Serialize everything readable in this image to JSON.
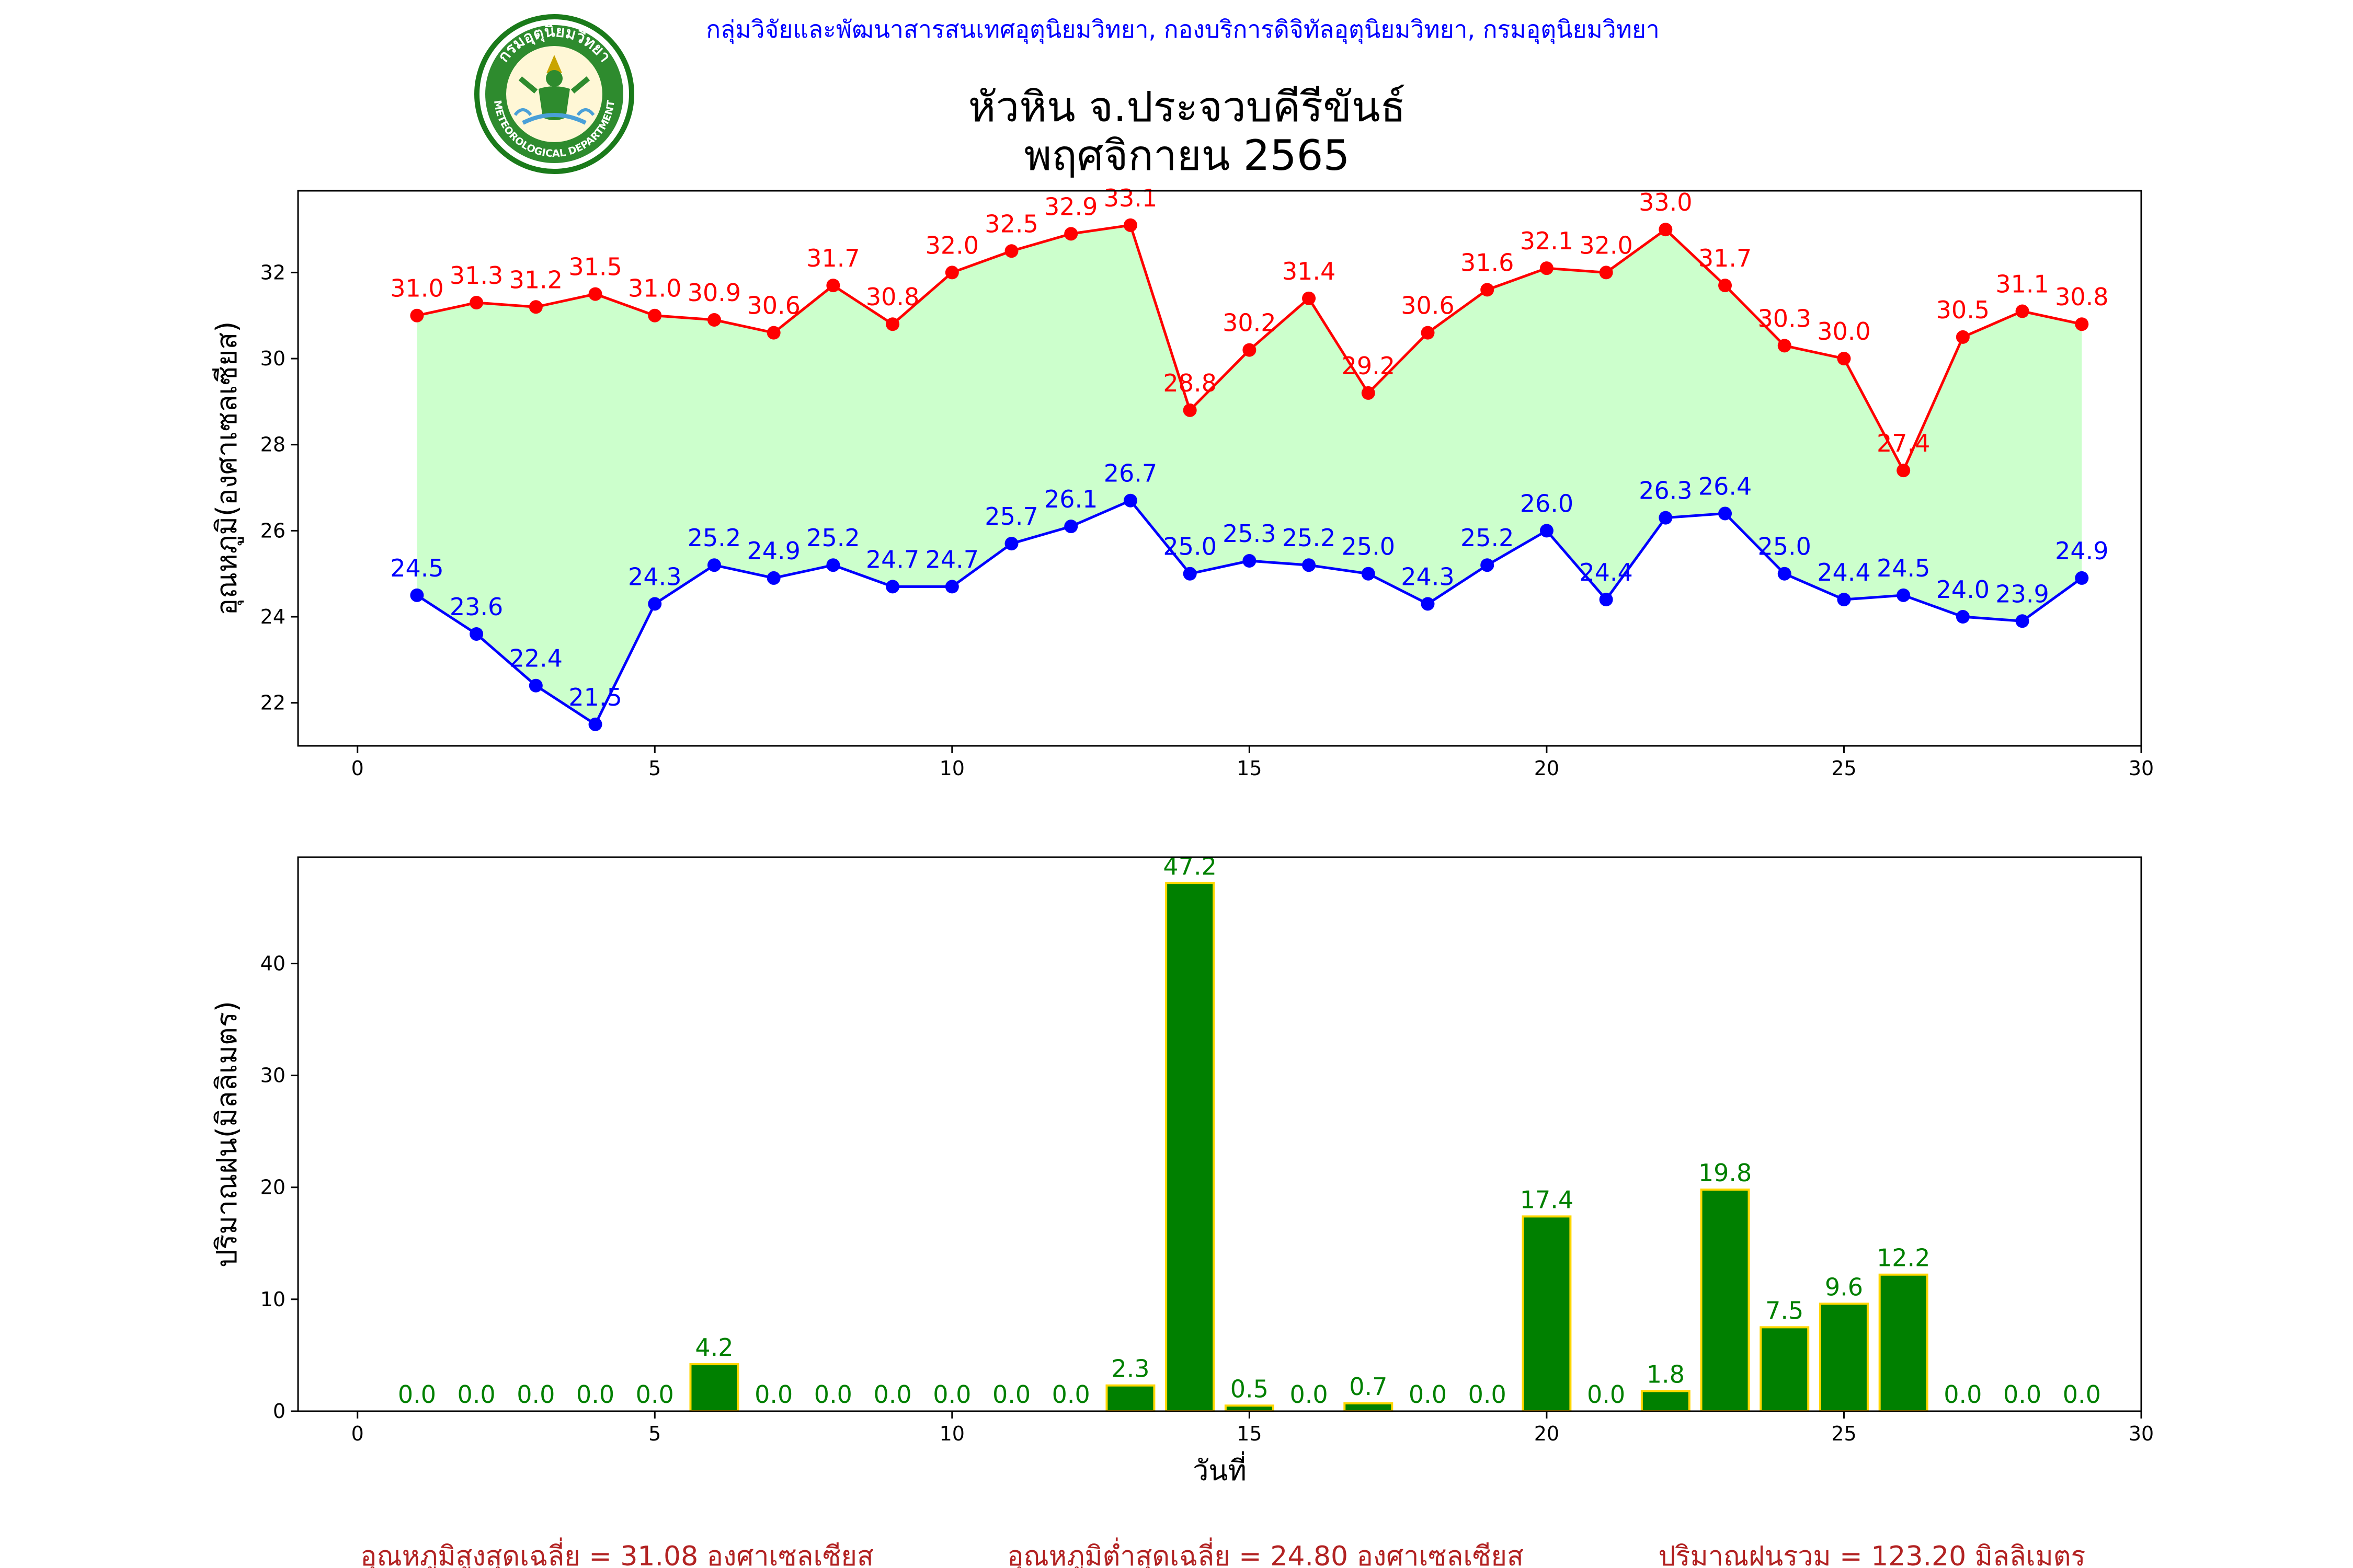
{
  "header": {
    "agency": "กลุ่มวิจัยและพัฒนาสารสนเทศอุตุนิยมวิทยา, กองบริการดิจิทัลอุตุนิยมวิทยา, กรมอุตุนิยมวิทยา",
    "station": "หัวหิน จ.ประจวบคีรีขันธ์",
    "period": "พฤศจิกายน 2565",
    "logo": {
      "name": "meteorological-department-logo",
      "arc_text": "กรมอุตุนิยมวิทยา",
      "bottom_text": "METEOROLOGICAL DEPARTMENT"
    }
  },
  "chart_data": [
    {
      "type": "line",
      "ylabel": "อุณหภูมิ(องศาเซลเซียส)",
      "xlabel": "",
      "xlim": [
        -1,
        30
      ],
      "ylim": [
        21,
        33.9
      ],
      "x_ticks": [
        0,
        5,
        10,
        15,
        20,
        25,
        30
      ],
      "y_ticks": [
        22,
        24,
        26,
        28,
        30,
        32
      ],
      "grid": false,
      "x": [
        1,
        2,
        3,
        4,
        5,
        6,
        7,
        8,
        9,
        10,
        11,
        12,
        13,
        14,
        15,
        16,
        17,
        18,
        19,
        20,
        21,
        22,
        23,
        24,
        25,
        26,
        27,
        28,
        29
      ],
      "series": [
        {
          "key": "max",
          "color": "#ff0000",
          "values": [
            31.0,
            31.3,
            31.2,
            31.5,
            31.0,
            30.9,
            30.6,
            31.7,
            30.8,
            32.0,
            32.5,
            32.9,
            33.1,
            28.8,
            30.2,
            31.4,
            29.2,
            30.6,
            31.6,
            32.1,
            32.0,
            33.0,
            31.7,
            30.3,
            30.0,
            27.4,
            30.5,
            31.1,
            30.8
          ]
        },
        {
          "key": "min",
          "color": "#0000ff",
          "values": [
            24.5,
            23.6,
            22.4,
            21.5,
            24.3,
            25.2,
            24.9,
            25.2,
            24.7,
            24.7,
            25.7,
            26.1,
            26.7,
            25.0,
            25.3,
            25.2,
            25.0,
            24.3,
            25.2,
            26.0,
            24.4,
            26.3,
            26.4,
            25.0,
            24.4,
            24.5,
            24.0,
            23.9,
            24.9
          ]
        }
      ],
      "fill_between_color": "#ccffcc"
    },
    {
      "type": "bar",
      "ylabel": "ปริมาณฝน(มิลลิเมตร)",
      "xlabel": "วันที่",
      "xlim": [
        -1,
        30
      ],
      "ylim": [
        0,
        49.5
      ],
      "x_ticks": [
        0,
        5,
        10,
        15,
        20,
        25,
        30
      ],
      "y_ticks": [
        0,
        10,
        20,
        30,
        40
      ],
      "grid": false,
      "bar_color": "#008000",
      "edge_color": "#ffd700",
      "label_color": "#008000",
      "categories": [
        1,
        2,
        3,
        4,
        5,
        6,
        7,
        8,
        9,
        10,
        11,
        12,
        13,
        14,
        15,
        16,
        17,
        18,
        19,
        20,
        21,
        22,
        23,
        24,
        25,
        26,
        27,
        28,
        29
      ],
      "values": [
        0.0,
        0.0,
        0.0,
        0.0,
        0.0,
        4.2,
        0.0,
        0.0,
        0.0,
        0.0,
        0.0,
        0.0,
        2.3,
        47.2,
        0.5,
        0.0,
        0.7,
        0.0,
        0.0,
        17.4,
        0.0,
        1.8,
        19.8,
        7.5,
        9.6,
        12.2,
        0.0,
        0.0,
        0.0
      ]
    }
  ],
  "summary": {
    "color": "#b22222",
    "max_avg": "อุณหภูมิสูงสุดเฉลี่ย = 31.08 องศาเซลเซียส",
    "min_avg": "อุณหภูมิต่ำสุดเฉลี่ย = 24.80 องศาเซลเซียส",
    "rain_total": "ปริมาณฝนรวม = 123.20 มิลลิเมตร"
  }
}
